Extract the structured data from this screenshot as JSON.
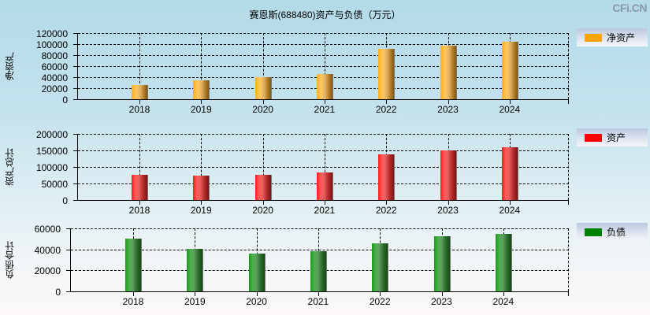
{
  "title": "赛恩斯(688480)资产与负债（万元）",
  "watermark": "CFi.CN",
  "chart_data": [
    {
      "type": "bar",
      "title": "赛恩斯(688480)资产与负债（万元）",
      "ylabel": "净资产",
      "legend": "净资产",
      "color": "#FFA500",
      "categories": [
        "2018",
        "2019",
        "2020",
        "2021",
        "2022",
        "2023",
        "2024"
      ],
      "values": [
        25700,
        34300,
        40000,
        45700,
        91400,
        97100,
        104300
      ],
      "yticks": [
        "120000",
        "100000",
        "80000",
        "60000",
        "40000",
        "20000",
        "0"
      ],
      "ylim": [
        0,
        120000
      ],
      "grid": true,
      "legend_position": "right"
    },
    {
      "type": "bar",
      "ylabel": "资产总计",
      "legend": "资产",
      "color": "#FF0000",
      "categories": [
        "2018",
        "2019",
        "2020",
        "2021",
        "2022",
        "2023",
        "2024"
      ],
      "values": [
        76200,
        73800,
        76900,
        84000,
        138800,
        150700,
        160200
      ],
      "yticks": [
        "200000",
        "150000",
        "100000",
        "50000",
        "0"
      ],
      "ylim": [
        0,
        200000
      ],
      "grid": true,
      "legend_position": "right"
    },
    {
      "type": "bar",
      "ylabel": "负债合计",
      "legend": "负债",
      "color": "#008000",
      "categories": [
        "2018",
        "2019",
        "2020",
        "2021",
        "2022",
        "2023",
        "2024"
      ],
      "values": [
        50400,
        40600,
        36000,
        38200,
        45700,
        52400,
        54700
      ],
      "yticks": [
        "60000",
        "40000",
        "20000",
        "0"
      ],
      "ylim": [
        0,
        60000
      ],
      "grid": true,
      "legend_position": "right"
    }
  ]
}
